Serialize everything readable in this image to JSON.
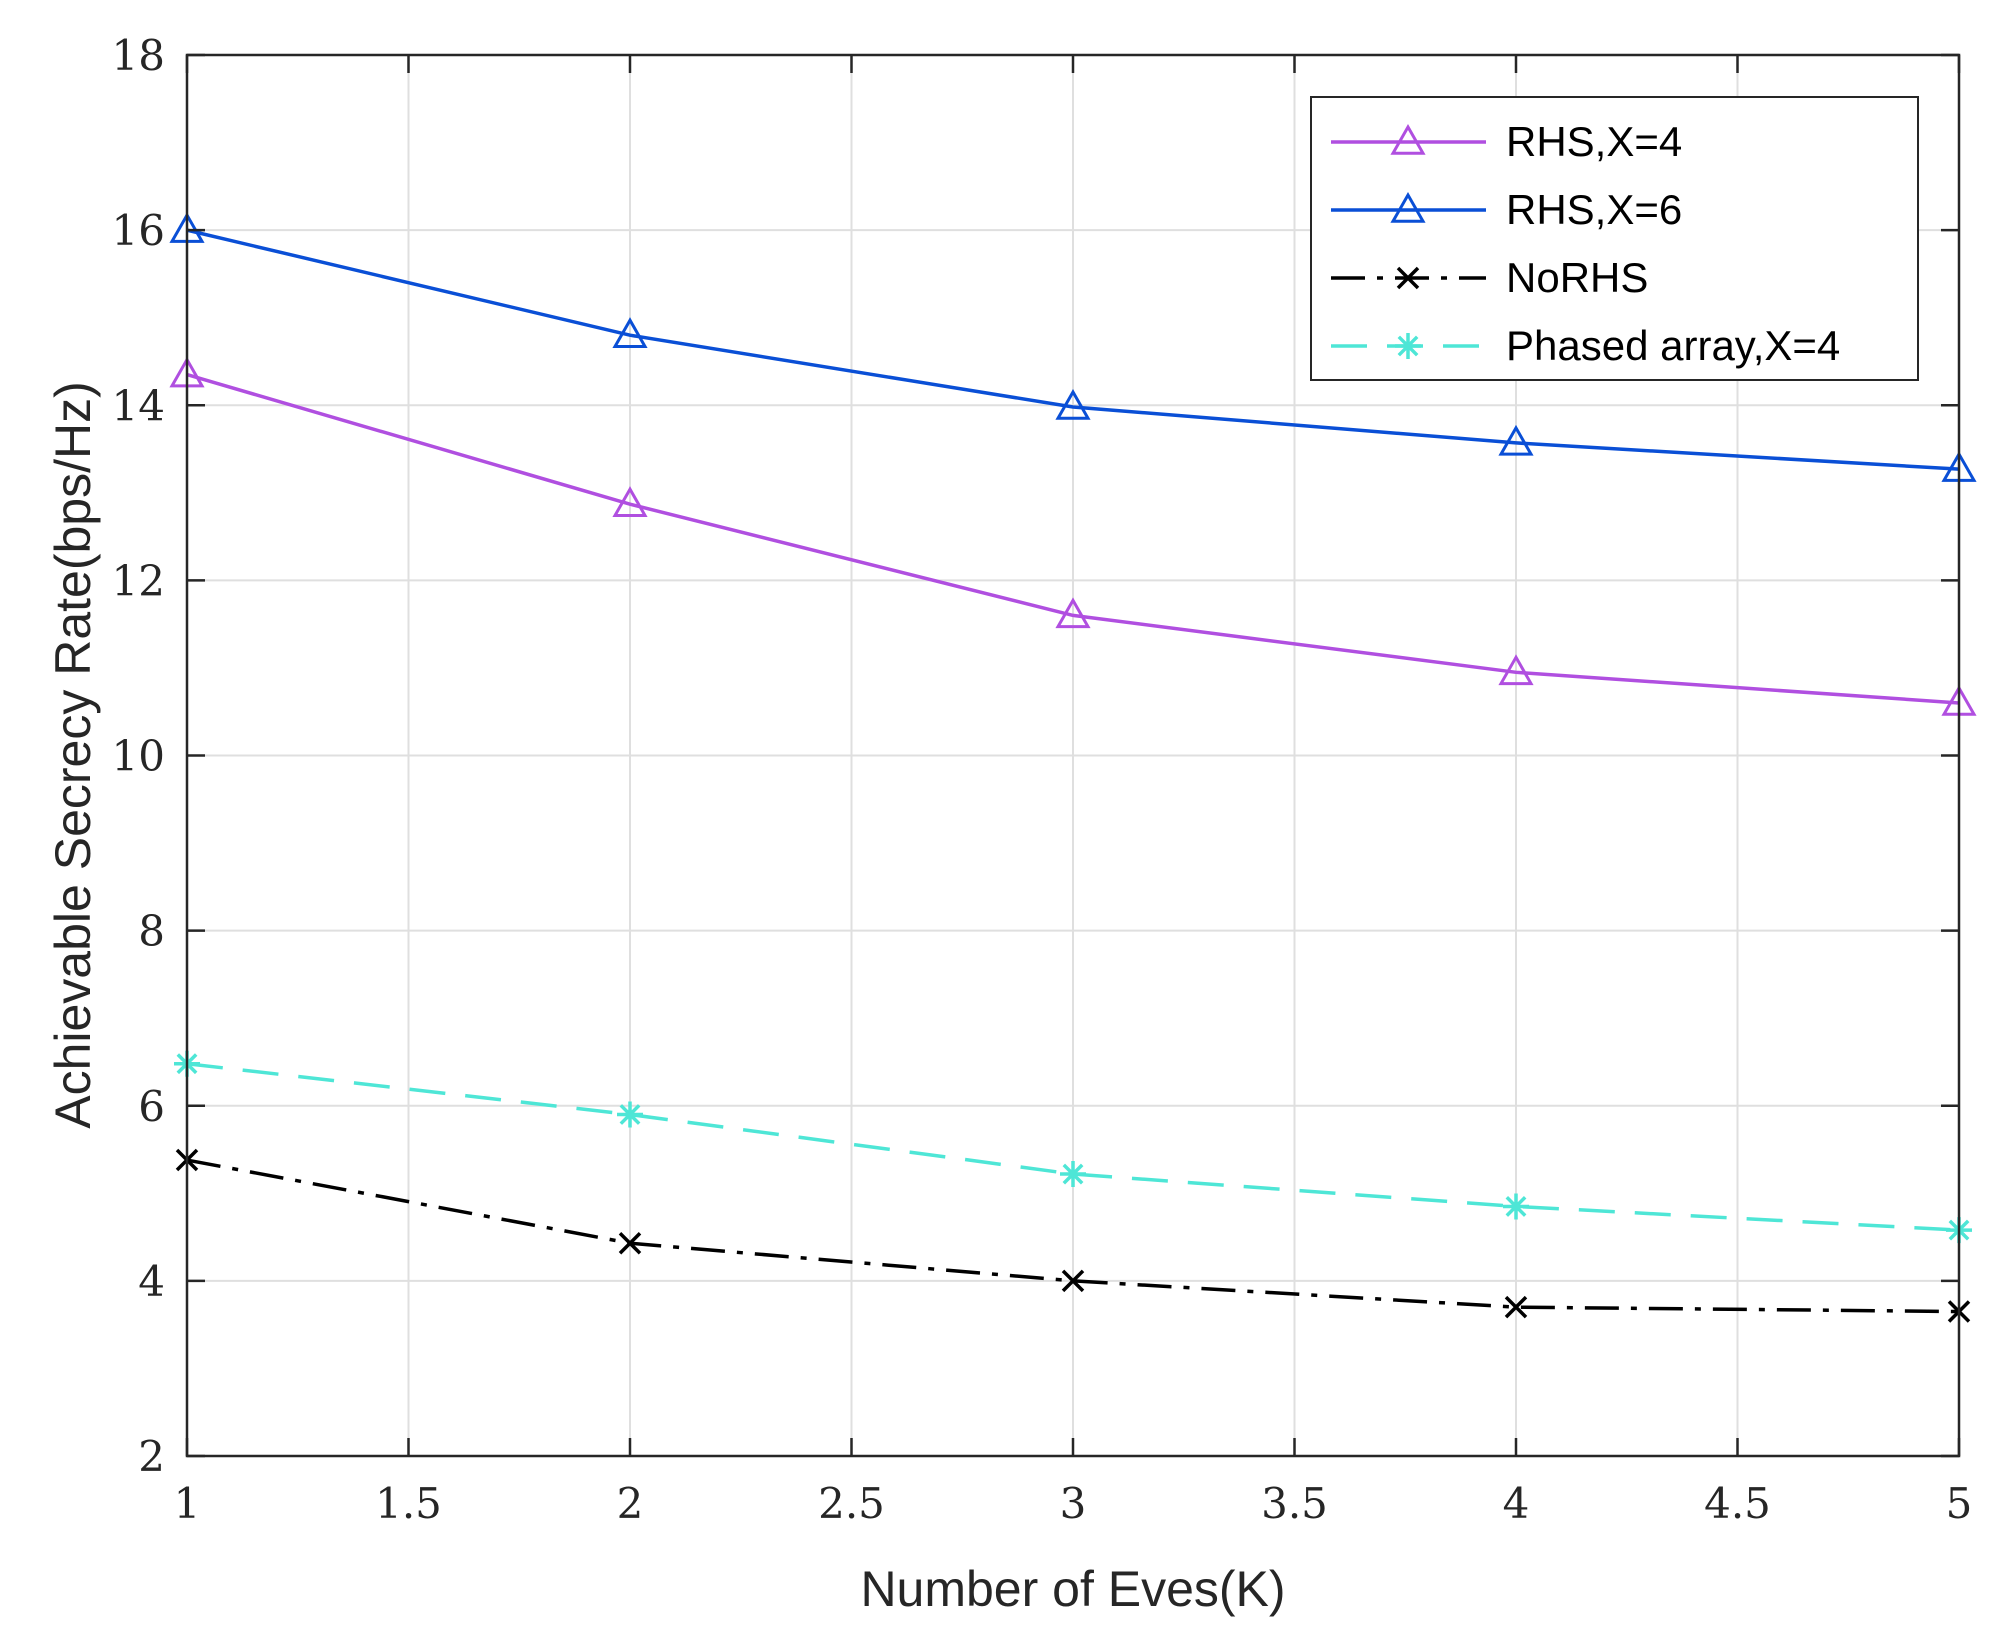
{
  "chart_data": {
    "type": "line",
    "title": "",
    "xlabel": "Number of Eves(K)",
    "ylabel": "Achievable Secrecy Rate(bps/Hz)",
    "xlim": [
      1,
      5
    ],
    "ylim": [
      2,
      18
    ],
    "xticks": [
      1,
      1.5,
      2,
      2.5,
      3,
      3.5,
      4,
      4.5,
      5
    ],
    "xtick_labels": [
      "1",
      "1.5",
      "2",
      "2.5",
      "3",
      "3.5",
      "4",
      "4.5",
      "5"
    ],
    "yticks": [
      2,
      4,
      6,
      8,
      10,
      12,
      14,
      16,
      18
    ],
    "ytick_labels": [
      "2",
      "4",
      "6",
      "8",
      "10",
      "12",
      "14",
      "16",
      "18"
    ],
    "grid": true,
    "legend_position": "top-right",
    "x": [
      1,
      2,
      3,
      4,
      5
    ],
    "series": [
      {
        "name": "RHS,X=4",
        "values": [
          14.35,
          12.87,
          11.6,
          10.95,
          10.6
        ],
        "color": "#b04fe0",
        "marker": "triangle",
        "line": "solid"
      },
      {
        "name": "RHS,X=6",
        "values": [
          16.0,
          14.8,
          13.98,
          13.57,
          13.27
        ],
        "color": "#0a4fd6",
        "marker": "triangle",
        "line": "solid"
      },
      {
        "name": "NoRHS",
        "values": [
          5.38,
          4.43,
          4.0,
          3.7,
          3.65
        ],
        "color": "#000000",
        "marker": "x",
        "line": "dashdot"
      },
      {
        "name": "Phased array,X=4",
        "values": [
          6.48,
          5.9,
          5.22,
          4.85,
          4.58
        ],
        "color": "#4ee6d6",
        "marker": "asterisk",
        "line": "dashed"
      }
    ]
  }
}
